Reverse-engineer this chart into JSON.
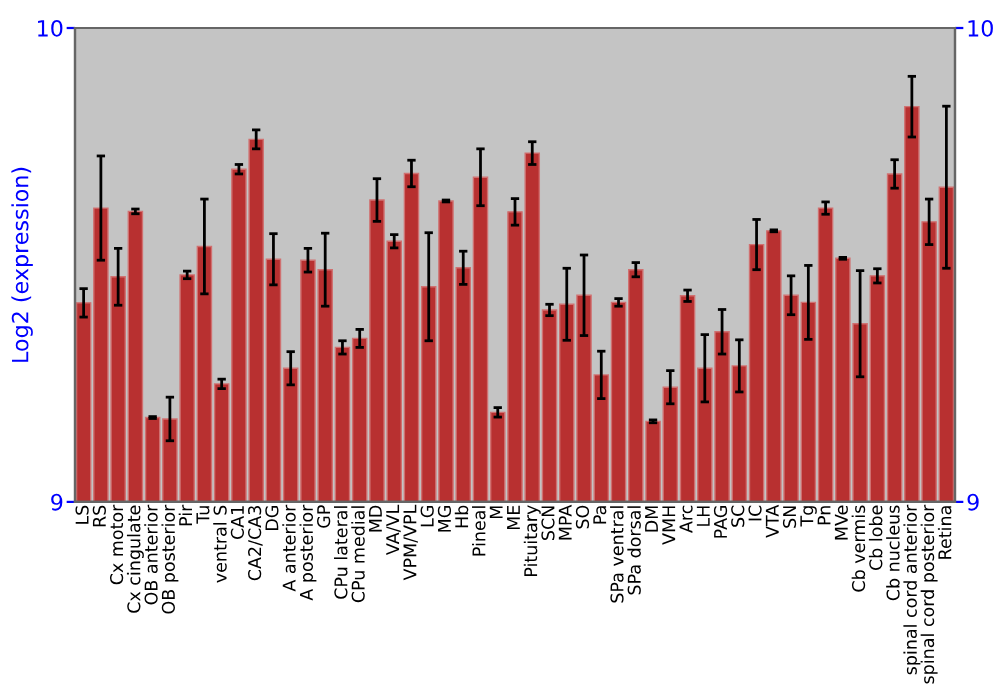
{
  "chart_data": {
    "type": "bar",
    "ylabel": "Log2 (expression)",
    "categories": [
      "LS",
      "RS",
      "Cx motor",
      "Cx cingulate",
      "OB anterior",
      "OB posterior",
      "Pir",
      "Tu",
      "ventral S",
      "CA1",
      "CA2/CA3",
      "DG",
      "A anterior",
      "A posterior",
      "GP",
      "CPu lateral",
      "CPu medial",
      "MD",
      "VA/VL",
      "VPM/VPL",
      "LG",
      "MG",
      "Hb",
      "Pineal",
      "M",
      "ME",
      "Pituitary",
      "SCN",
      "MPA",
      "SO",
      "Pa",
      "SPa ventral",
      "SPa dorsal",
      "DM",
      "VMH",
      "Arc",
      "LH",
      "PAG",
      "SC",
      "IC",
      "VTA",
      "SN",
      "Tg",
      "Pn",
      "MVe",
      "Cb vermis",
      "Cb lobe",
      "Cb nucleus",
      "spinal cord anterior",
      "spinal cord posterior",
      "Retina"
    ],
    "values": [
      9.42,
      9.62,
      9.475,
      9.613,
      9.178,
      9.175,
      9.479,
      9.539,
      9.249,
      9.702,
      9.765,
      9.512,
      9.282,
      9.51,
      9.49,
      9.326,
      9.345,
      9.637,
      9.55,
      9.693,
      9.454,
      9.635,
      9.494,
      9.685,
      9.189,
      9.612,
      9.736,
      9.405,
      9.417,
      9.436,
      9.268,
      9.421,
      9.49,
      9.17,
      9.242,
      9.435,
      9.282,
      9.359,
      9.287,
      9.543,
      9.572,
      9.436,
      9.421,
      9.62,
      9.514,
      9.376,
      9.477,
      9.692,
      9.834,
      9.591,
      9.664
    ],
    "errors": [
      0.03,
      0.11,
      0.06,
      0.005,
      0.002,
      0.046,
      0.008,
      0.1,
      0.01,
      0.01,
      0.02,
      0.054,
      0.035,
      0.025,
      0.077,
      0.014,
      0.019,
      0.045,
      0.014,
      0.028,
      0.114,
      0.002,
      0.035,
      0.06,
      0.01,
      0.028,
      0.024,
      0.012,
      0.076,
      0.085,
      0.05,
      0.008,
      0.015,
      0.003,
      0.035,
      0.012,
      0.071,
      0.047,
      0.055,
      0.053,
      0.002,
      0.041,
      0.078,
      0.013,
      0.002,
      0.112,
      0.015,
      0.03,
      0.064,
      0.048,
      0.171
    ],
    "color": "#b83030",
    "ylim": [
      9,
      10
    ],
    "yticks": [
      9,
      10
    ],
    "y2lim": [
      9,
      10
    ],
    "y2ticks": [
      9,
      10
    ],
    "grid": false,
    "legend": false
  }
}
